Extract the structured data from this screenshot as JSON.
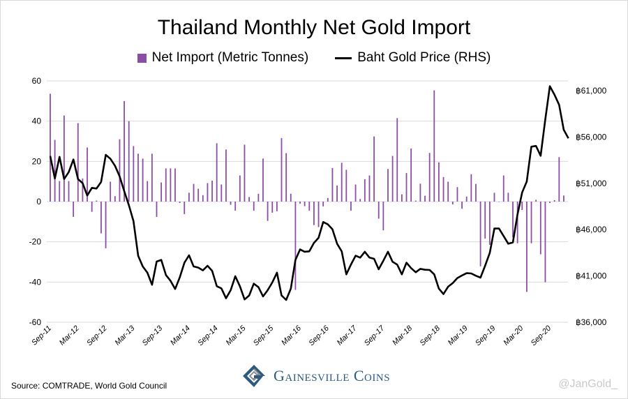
{
  "chart_data": {
    "type": "bar+line",
    "title": "Thailand Monthly Net Gold Import",
    "legend_position": "top",
    "series": [
      {
        "name": "Net Import (Metric Tonnes)",
        "type": "bar",
        "axis": "left",
        "color": "#8b4ea6",
        "values": [
          53.6,
          30.7,
          10.2,
          42.8,
          10.2,
          -7.6,
          39,
          11.5,
          26.9,
          -5.1,
          0.5,
          -15.8,
          -23.2,
          9.9,
          2.7,
          31,
          50,
          40,
          27.6,
          23.8,
          21.4,
          10.2,
          23.8,
          -7.6,
          9.5,
          16.5,
          16.5,
          16.5,
          -0.7,
          -6.2,
          4.4,
          8.8,
          6.4,
          3.2,
          9.2,
          10.4,
          29,
          8.5,
          25.9,
          -1.6,
          -4.5,
          13,
          28.3,
          2.3,
          -4.5,
          3.9,
          21.4,
          -9.6,
          -5.5,
          -4.8,
          31.6,
          24.1,
          3.9,
          -43.9,
          -1,
          -2.3,
          -4.5,
          -11.7,
          -12.7,
          -2.4,
          1.8,
          16.7,
          8,
          19.3,
          15.8,
          -4.5,
          8.5,
          1.3,
          11.1,
          13,
          32.4,
          -8.5,
          -14.3,
          16.2,
          22.7,
          41.5,
          3.6,
          14.2,
          26.4,
          0.5,
          8.9,
          2.9,
          24.2,
          55.3,
          19.5,
          12.2,
          9.9,
          -1.4,
          7.2,
          -3.5,
          2.5,
          13.6,
          8.8,
          -32.2,
          -18.4,
          -21.5,
          4.4,
          0,
          13,
          4.4,
          -17.8,
          -20.7,
          -4.2,
          -44.9,
          -20.7,
          0.9,
          -26.2,
          -40.1,
          -0.7,
          0.7,
          22.1,
          3
        ]
      },
      {
        "name": "Baht Gold Price (RHS)",
        "type": "line",
        "axis": "right",
        "color": "#000000",
        "values": [
          53950,
          51510,
          53850,
          51460,
          52210,
          53570,
          51460,
          51010,
          49680,
          50510,
          50430,
          51140,
          54070,
          53650,
          52890,
          51760,
          50130,
          48630,
          46920,
          43180,
          42020,
          41350,
          40040,
          42550,
          42730,
          41100,
          40470,
          39590,
          40840,
          42430,
          43230,
          42020,
          41900,
          41600,
          42100,
          41550,
          39890,
          39660,
          38590,
          39460,
          40970,
          39890,
          38460,
          38890,
          40170,
          39790,
          38790,
          39460,
          40290,
          41350,
          38890,
          38410,
          39640,
          42730,
          43860,
          43610,
          43660,
          44560,
          45110,
          46820,
          46570,
          46040,
          44480,
          43660,
          41170,
          42220,
          43180,
          42980,
          43610,
          42980,
          42850,
          41720,
          42650,
          43610,
          42530,
          42220,
          41170,
          42430,
          41850,
          41400,
          41770,
          41670,
          41650,
          41170,
          39640,
          39040,
          39840,
          40220,
          40770,
          41050,
          41300,
          41270,
          41020,
          40820,
          42100,
          43480,
          46120,
          46120,
          45310,
          44480,
          44610,
          47620,
          50010,
          51190,
          54950,
          55030,
          53970,
          57860,
          61480,
          60550,
          59470,
          56780,
          55850
        ]
      }
    ],
    "x_start": "Sep-11",
    "x_tick_labels": [
      "Sep-11",
      "Mar-12",
      "Sep-12",
      "Mar-13",
      "Sep-13",
      "Mar-14",
      "Sep-14",
      "Mar-15",
      "Sep-15",
      "Mar-16",
      "Sep-16",
      "Mar-17",
      "Sep-17",
      "Mar-18",
      "Sep-18",
      "Mar-19",
      "Sep-19",
      "Mar-20",
      "Sep-20"
    ],
    "left_axis": {
      "ylim": [
        -60,
        60
      ],
      "ticks": [
        "60",
        "40",
        "20",
        "0",
        "-20",
        "-40",
        "-60"
      ],
      "tick_values": [
        60,
        40,
        20,
        0,
        -20,
        -40,
        -60
      ]
    },
    "right_axis": {
      "ylim": [
        36000,
        62050
      ],
      "ticks": [
        "฿61,000",
        "฿56,000",
        "฿51,000",
        "฿46,000",
        "฿41,000",
        "฿36,000"
      ],
      "tick_values": [
        61000,
        56000,
        51000,
        46000,
        41000,
        36000
      ]
    },
    "grid": true
  },
  "footer": {
    "source": "Source: COMTRADE, World Gold Council",
    "logo_text": "Gainesville Coins",
    "handle": "@JanGold_"
  }
}
